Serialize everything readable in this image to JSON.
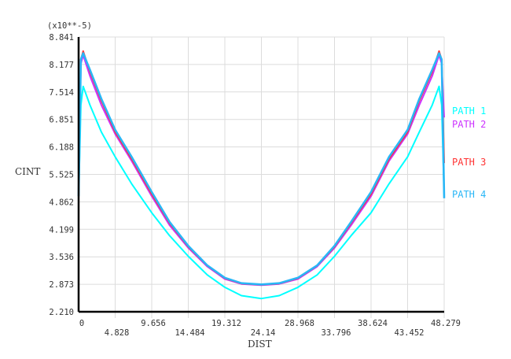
{
  "chart_data": {
    "type": "line",
    "title": "",
    "xlabel": "DIST",
    "ylabel": "CINT",
    "y_multiplier_label": "(x10**-5)",
    "xlim": [
      0,
      48.279
    ],
    "ylim": [
      2.21,
      8.841
    ],
    "x_ticks": [
      "0",
      "4.828",
      "9.656",
      "14.484",
      "19.312",
      "24.14",
      "28.968",
      "33.796",
      "38.624",
      "43.452",
      "48.279"
    ],
    "y_ticks": [
      "2.210",
      "2.873",
      "3.536",
      "4.199",
      "4.862",
      "5.525",
      "6.188",
      "6.851",
      "7.514",
      "8.177",
      "8.841"
    ],
    "grid": true,
    "legend_position": "right",
    "x": [
      0,
      0.3,
      0.6,
      1.5,
      3.0,
      4.828,
      7.0,
      9.656,
      12.0,
      14.484,
      17.0,
      19.312,
      21.5,
      24.14,
      26.5,
      28.968,
      31.5,
      33.796,
      36.0,
      38.624,
      41.0,
      43.452,
      45.0,
      46.7,
      47.6,
      47.95,
      48.279
    ],
    "series": [
      {
        "name": "PATH 1",
        "color": "#00ffff",
        "values": [
          5.0,
          7.2,
          7.65,
          7.2,
          6.55,
          5.95,
          5.3,
          4.6,
          4.05,
          3.55,
          3.1,
          2.8,
          2.6,
          2.53,
          2.6,
          2.8,
          3.1,
          3.55,
          4.05,
          4.6,
          5.3,
          5.95,
          6.55,
          7.2,
          7.65,
          7.2,
          5.0
        ]
      },
      {
        "name": "PATH 2",
        "color": "#cc33ff",
        "values": [
          5.2,
          8.2,
          8.4,
          7.9,
          7.2,
          6.5,
          5.85,
          5.0,
          4.3,
          3.75,
          3.3,
          3.0,
          2.88,
          2.85,
          2.88,
          3.0,
          3.3,
          3.75,
          4.3,
          5.0,
          5.85,
          6.5,
          7.2,
          7.9,
          8.4,
          8.2,
          6.9
        ]
      },
      {
        "name": "PATH 3",
        "color": "#ff3333",
        "values": [
          5.3,
          8.3,
          8.5,
          8.0,
          7.3,
          6.55,
          5.9,
          5.05,
          4.35,
          3.78,
          3.32,
          3.02,
          2.89,
          2.86,
          2.89,
          3.02,
          3.32,
          3.78,
          4.35,
          5.05,
          5.9,
          6.55,
          7.3,
          8.0,
          8.5,
          8.3,
          5.8
        ]
      },
      {
        "name": "PATH 4",
        "color": "#29b6f6",
        "values": [
          5.0,
          8.3,
          8.45,
          8.05,
          7.35,
          6.6,
          5.95,
          5.1,
          4.38,
          3.8,
          3.33,
          3.03,
          2.9,
          2.87,
          2.9,
          3.03,
          3.33,
          3.8,
          4.38,
          5.1,
          5.95,
          6.6,
          7.35,
          8.05,
          8.45,
          8.3,
          4.95
        ]
      }
    ]
  }
}
